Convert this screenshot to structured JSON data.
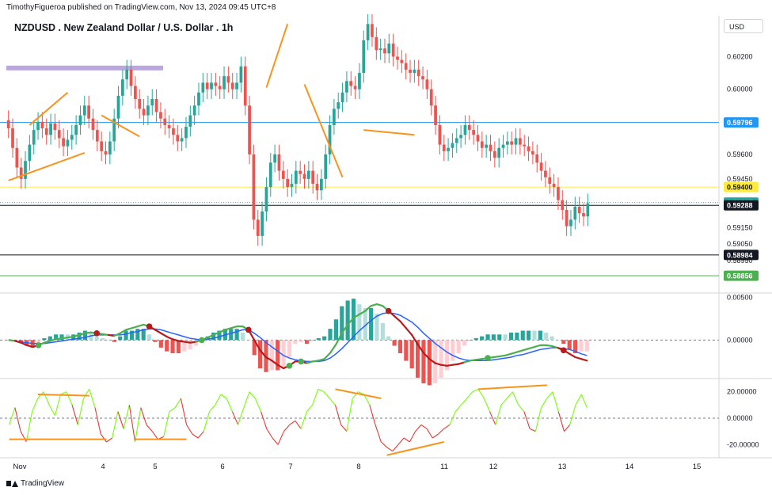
{
  "header": {
    "publisher_line": "TimothyFigueroa published on TradingView.com, Nov 13, 2024 09:45 UTC+8",
    "symbol_title": "NZDUSD . New Zealand Dollar / U.S. Dollar . 1h",
    "currency": "USD"
  },
  "footer": {
    "brand": "TradingView"
  },
  "colors": {
    "up": "#26a69a",
    "down": "#ef5350",
    "trend_line": "#f7941d",
    "zone": "#b39ddb",
    "blue_line": "#2196f3",
    "yellow_line": "#ffeb3b",
    "green_line": "#4caf50",
    "macd_fast": "#4caf50",
    "macd_slow": "#2962ff",
    "macd_red": "#b71c1c",
    "osc_up": "#76ff03",
    "osc_down": "#e53935"
  },
  "chart_data": [
    {
      "type": "candlestick",
      "title": "NZDUSD . New Zealand Dollar / U.S. Dollar . 1h",
      "x_ticks": [
        "Nov",
        "4",
        "5",
        "6",
        "7",
        "8",
        "11",
        "12",
        "13",
        "14",
        "15"
      ],
      "y_ticks": [
        "0.60200",
        "0.60000",
        "0.59600",
        "0.59450",
        "0.59150",
        "0.59050",
        "0.58950"
      ],
      "ylim": [
        0.5875,
        0.6045
      ],
      "key_prices": [
        {
          "label": "0.59796",
          "value": 0.59796,
          "style": "blue"
        },
        {
          "label": "0.59400",
          "value": 0.594,
          "style": "yellow"
        },
        {
          "label": "0.59305",
          "value": 0.59305,
          "style": "last"
        },
        {
          "label": "0.59288",
          "value": 0.59288,
          "style": "black"
        },
        {
          "label": "0.58984",
          "value": 0.58984,
          "style": "black"
        },
        {
          "label": "0.58856",
          "value": 0.58856,
          "style": "green"
        }
      ],
      "resistance_zone": {
        "x_start": "Nov",
        "x_end": "5",
        "price": 0.6013
      },
      "candles_close": [
        0.5976,
        0.5964,
        0.5952,
        0.5945,
        0.5956,
        0.5966,
        0.5975,
        0.598,
        0.5976,
        0.5972,
        0.5979,
        0.5975,
        0.597,
        0.5965,
        0.5969,
        0.5972,
        0.5978,
        0.5984,
        0.599,
        0.5982,
        0.5975,
        0.5968,
        0.5962,
        0.596,
        0.5968,
        0.5982,
        0.5996,
        0.6006,
        0.6012,
        0.6002,
        0.5994,
        0.5988,
        0.5984,
        0.599,
        0.5994,
        0.5986,
        0.5982,
        0.5978,
        0.5976,
        0.5972,
        0.5968,
        0.597,
        0.5977,
        0.5984,
        0.599,
        0.5998,
        0.6004,
        0.6,
        0.6004,
        0.6002,
        0.6,
        0.6008,
        0.6004,
        0.6,
        0.6004,
        0.6014,
        0.599,
        0.596,
        0.592,
        0.591,
        0.5925,
        0.594,
        0.5955,
        0.596,
        0.595,
        0.5945,
        0.594,
        0.5942,
        0.595,
        0.5948,
        0.5945,
        0.595,
        0.5942,
        0.5938,
        0.5945,
        0.596,
        0.5978,
        0.5988,
        0.5992,
        0.5998,
        0.6005,
        0.6002,
        0.6,
        0.601,
        0.603,
        0.604,
        0.6032,
        0.6024,
        0.6025,
        0.6022,
        0.6028,
        0.602,
        0.6018,
        0.6016,
        0.6012,
        0.601,
        0.6012,
        0.6008,
        0.6006,
        0.6,
        0.599,
        0.5978,
        0.5966,
        0.5962,
        0.5964,
        0.5967,
        0.597,
        0.5972,
        0.5978,
        0.5975,
        0.5972,
        0.5968,
        0.5964,
        0.5966,
        0.5962,
        0.5958,
        0.5964,
        0.5966,
        0.5968,
        0.5966,
        0.597,
        0.5966,
        0.5965,
        0.5962,
        0.596,
        0.5955,
        0.595,
        0.5946,
        0.5942,
        0.594,
        0.5932,
        0.5926,
        0.5916,
        0.592,
        0.5928,
        0.5924,
        0.5922,
        0.593
      ],
      "trend_lines": [
        {
          "from": [
            0,
            0.5944
          ],
          "to": [
            18,
            0.5961
          ]
        },
        {
          "from": [
            5,
            0.5978
          ],
          "to": [
            14,
            0.5998
          ]
        },
        {
          "from": [
            22,
            0.5984
          ],
          "to": [
            31,
            0.5971
          ]
        },
        {
          "from": [
            61,
            0.6001
          ],
          "to": [
            66,
            0.604
          ]
        },
        {
          "from": [
            70,
            0.6003
          ],
          "to": [
            79,
            0.5946
          ]
        },
        {
          "from": [
            84,
            0.5975
          ],
          "to": [
            96,
            0.5972
          ]
        }
      ]
    },
    {
      "type": "macd",
      "y_ticks": [
        "0.00500",
        "0.00000"
      ],
      "ylim": [
        -0.0045,
        0.0055
      ],
      "macd": [
        0,
        -0.0001,
        -0.0003,
        -0.0006,
        -0.0008,
        -0.0006,
        -0.0003,
        -0.0001,
        0.0001,
        0.0002,
        0.0003,
        0.0004,
        0.0006,
        0.0008,
        0.0009,
        0.0008,
        0.0007,
        0.0006,
        0.0005,
        0.0008,
        0.0012,
        0.0014,
        0.0016,
        0.0018,
        0.0016,
        0.0012,
        0.0008,
        0.0004,
        0.0001,
        -0.0001,
        -0.0002,
        -0.0003,
        -0.0002,
        0,
        0.0003,
        0.0006,
        0.0009,
        0.0012,
        0.0014,
        0.0016,
        0.0016,
        0.0012,
        0,
        -0.0012,
        -0.002,
        -0.0024,
        -0.0029,
        -0.0033,
        -0.003,
        -0.0025,
        -0.0025,
        -0.0027,
        -0.0025,
        -0.0024,
        -0.0022,
        -0.0015,
        -0.0005,
        0.0008,
        0.0018,
        0.0026,
        0.003,
        0.0034,
        0.004,
        0.0042,
        0.004,
        0.0034,
        0.0028,
        0.0022,
        0.0014,
        0.0006,
        -0.0005,
        -0.0015,
        -0.0022,
        -0.0027,
        -0.0029,
        -0.003,
        -0.0029,
        -0.0028,
        -0.0026,
        -0.0024,
        -0.0023,
        -0.0022,
        -0.0021,
        -0.002,
        -0.0019,
        -0.0018,
        -0.0016,
        -0.0014,
        -0.0012,
        -0.001,
        -0.0008,
        -0.0006,
        -0.0006,
        -0.0007,
        -0.0009,
        -0.0012,
        -0.0016,
        -0.002,
        -0.0022,
        -0.0024
      ],
      "signal": [
        0,
        -0.0001,
        -0.0002,
        -0.0003,
        -0.0004,
        -0.0004,
        -0.0004,
        -0.0003,
        -0.0002,
        -0.0001,
        0,
        0.0001,
        0.0002,
        0.0003,
        0.0005,
        0.0006,
        0.0006,
        0.0006,
        0.0006,
        0.0006,
        0.0007,
        0.0009,
        0.001,
        0.0012,
        0.0013,
        0.0013,
        0.0012,
        0.001,
        0.0008,
        0.0006,
        0.0004,
        0.0002,
        0.0001,
        0,
        0.0001,
        0.0002,
        0.0004,
        0.0006,
        0.0008,
        0.001,
        0.0012,
        0.0012,
        0.0008,
        0.0003,
        -0.0003,
        -0.0008,
        -0.0013,
        -0.0018,
        -0.0021,
        -0.0023,
        -0.0024,
        -0.0025,
        -0.0025,
        -0.0025,
        -0.0024,
        -0.0021,
        -0.0016,
        -0.001,
        -0.0003,
        0.0004,
        0.0011,
        0.0017,
        0.0023,
        0.0028,
        0.0031,
        0.0032,
        0.0031,
        0.0029,
        0.0025,
        0.0021,
        0.0015,
        0.0008,
        0.0002,
        -0.0004,
        -0.0009,
        -0.0014,
        -0.0018,
        -0.0021,
        -0.0023,
        -0.0024,
        -0.0024,
        -0.0024,
        -0.0024,
        -0.0023,
        -0.0022,
        -0.0021,
        -0.002,
        -0.0018,
        -0.0017,
        -0.0015,
        -0.0013,
        -0.0011,
        -0.001,
        -0.0009,
        -0.0009,
        -0.001,
        -0.0011,
        -0.0013,
        -0.0016,
        -0.0018
      ],
      "cross_markers": [
        {
          "index": 5,
          "dir": "up"
        },
        {
          "index": 15,
          "dir": "down"
        },
        {
          "index": 24,
          "dir": "down"
        },
        {
          "index": 33,
          "dir": "up"
        },
        {
          "index": 41,
          "dir": "down"
        },
        {
          "index": 48,
          "dir": "up"
        },
        {
          "index": 50,
          "dir": "up"
        },
        {
          "index": 65,
          "dir": "down"
        },
        {
          "index": 82,
          "dir": "up"
        },
        {
          "index": 95,
          "dir": "down"
        }
      ]
    },
    {
      "type": "oscillator",
      "y_ticks": [
        "20.00000",
        "0.00000",
        "-20.00000"
      ],
      "ylim": [
        -30,
        30
      ],
      "values": [
        -5,
        8,
        -10,
        -18,
        5,
        15,
        20,
        10,
        2,
        18,
        20,
        10,
        -5,
        15,
        22,
        8,
        -12,
        -18,
        -15,
        5,
        -8,
        10,
        -18,
        8,
        -5,
        -10,
        -16,
        -14,
        5,
        8,
        15,
        -5,
        -12,
        -15,
        -10,
        5,
        10,
        18,
        15,
        5,
        -5,
        8,
        20,
        15,
        5,
        -8,
        -15,
        -20,
        -10,
        -5,
        -2,
        -8,
        5,
        10,
        22,
        20,
        15,
        10,
        -5,
        -10,
        15,
        20,
        18,
        10,
        -5,
        -18,
        -22,
        -25,
        -20,
        -15,
        -18,
        -10,
        -5,
        -8,
        -15,
        -12,
        -8,
        -5,
        5,
        10,
        15,
        20,
        22,
        15,
        5,
        -5,
        10,
        15,
        20,
        10,
        5,
        -8,
        -10,
        8,
        15,
        20,
        5,
        -10,
        -5,
        10,
        18,
        8
      ],
      "trend_lines": [
        {
          "from": [
            0,
            -16
          ],
          "to": [
            17,
            -16
          ]
        },
        {
          "from": [
            5,
            18
          ],
          "to": [
            14,
            17
          ]
        },
        {
          "from": [
            22,
            -16
          ],
          "to": [
            31,
            -16
          ]
        },
        {
          "from": [
            57,
            22
          ],
          "to": [
            65,
            15
          ]
        },
        {
          "from": [
            66,
            -28
          ],
          "to": [
            76,
            -18
          ]
        },
        {
          "from": [
            82,
            22
          ],
          "to": [
            94,
            25
          ]
        }
      ]
    }
  ]
}
